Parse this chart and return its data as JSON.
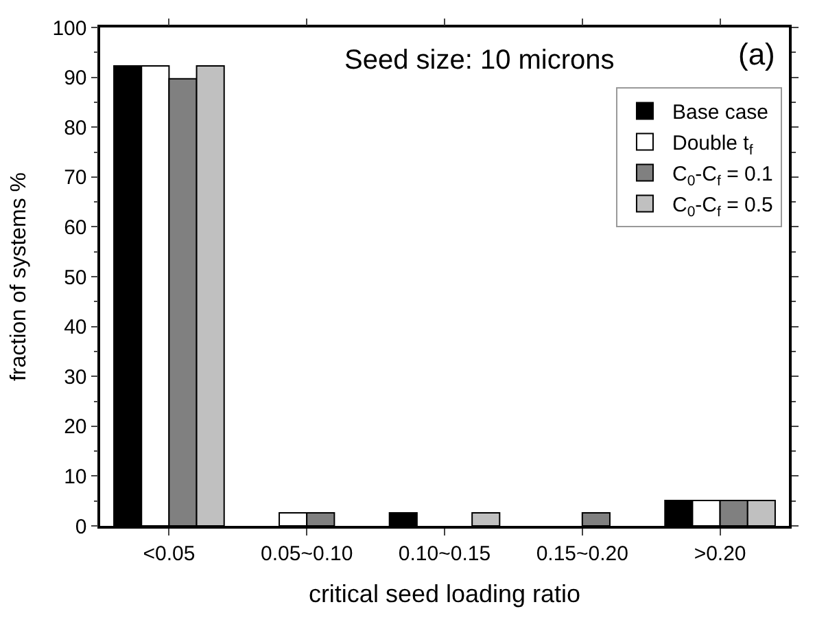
{
  "chart_data": {
    "type": "bar",
    "xlabel": "critical seed loading ratio",
    "ylabel": "fraction of systems %",
    "categories": [
      "<0.05",
      "0.05~0.10",
      "0.10~0.15",
      "0.15~0.20",
      ">0.20"
    ],
    "series": [
      {
        "name": "Base case",
        "color": "#000000",
        "values": [
          92.3,
          null,
          2.6,
          null,
          5.1
        ]
      },
      {
        "name": "Double t$_{f}$",
        "color": "#ffffff",
        "values": [
          92.3,
          2.6,
          null,
          null,
          5.1
        ]
      },
      {
        "name": "C$_{0}$-C$_{f}$ = 0.1",
        "color": "#808080",
        "values": [
          89.7,
          2.6,
          null,
          2.6,
          5.1
        ]
      },
      {
        "name": "C$_{0}$-C$_{f}$ = 0.5",
        "color": "#c0c0c0",
        "values": [
          92.3,
          null,
          2.6,
          null,
          5.1
        ]
      }
    ],
    "annotations": [
      "Seed size: 10 microns",
      "(a)"
    ],
    "ylim": [
      0,
      100
    ],
    "yticks": [
      0,
      10,
      20,
      30,
      40,
      50,
      60,
      70,
      80,
      90,
      100
    ],
    "legend": "top right"
  }
}
